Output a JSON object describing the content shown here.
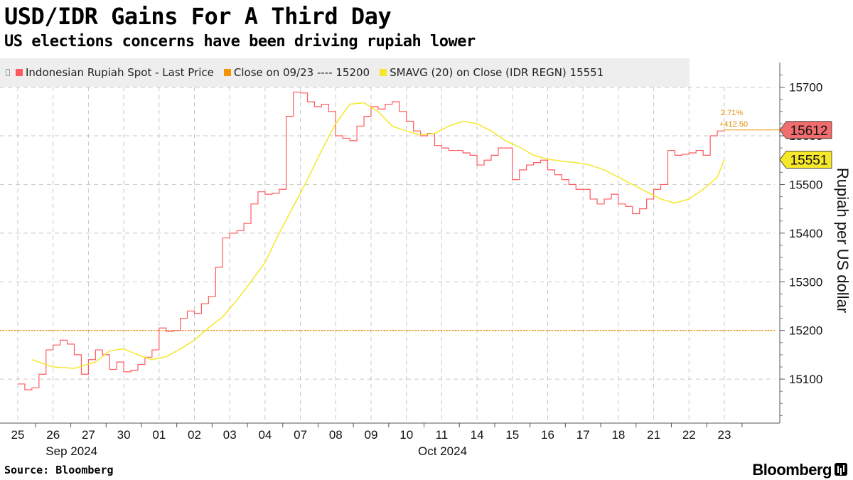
{
  "header": {
    "title": "USD/IDR Gains For A Third Day",
    "subtitle": "US elections concerns have been driving rupiah lower"
  },
  "legend": {
    "items": [
      {
        "label": "Indonesian Rupiah Spot - Last Price",
        "color": "#ff5a5f"
      },
      {
        "label": "Close on 09/23 ---- 15200",
        "color": "#f59200"
      },
      {
        "label": "SMAVG (20)  on Close (IDR REGN) 15551",
        "color": "#f5e72a"
      }
    ]
  },
  "footer": {
    "source": "Source: Bloomberg",
    "brand": "Bloomberg"
  },
  "chart_data": {
    "type": "line",
    "title": "USD/IDR Gains For A Third Day",
    "subtitle": "US elections concerns have been driving rupiah lower",
    "ylabel": "Rupiah per US dollar",
    "ylim": [
      15000,
      15750
    ],
    "yticks": [
      15100,
      15200,
      15300,
      15400,
      15500,
      15600,
      15700
    ],
    "y_axis_position": "right",
    "grid": true,
    "legend_position": "top",
    "x_tick_labels": [
      "25",
      "26",
      "27",
      "30",
      "01",
      "02",
      "03",
      "04",
      "07",
      "08",
      "09",
      "10",
      "11",
      "14",
      "15",
      "16",
      "17",
      "18",
      "21",
      "22",
      "23"
    ],
    "x_month_labels": [
      {
        "label": "Sep 2024",
        "at_index": 1
      },
      {
        "label": "Oct 2024",
        "at_index": 11.5
      }
    ],
    "reference_line": {
      "name": "Close on 09/23",
      "value": 15200,
      "color": "#f59200"
    },
    "annotation": {
      "pct": "2.71%",
      "change": "+412.50"
    },
    "last_value_labels": [
      {
        "value": "15612",
        "color": "#f26d6d",
        "y": 15612
      },
      {
        "value": "15551",
        "color": "#f5e72a",
        "y": 15551
      }
    ],
    "series": [
      {
        "name": "Indonesian Rupiah Spot - Last Price",
        "color": "#ff5a5f",
        "x": [
          0,
          0.2,
          0.4,
          0.6,
          0.8,
          1.0,
          1.2,
          1.4,
          1.6,
          1.8,
          2.0,
          2.2,
          2.4,
          2.6,
          2.8,
          3.0,
          3.2,
          3.4,
          3.6,
          3.8,
          4.0,
          4.2,
          4.4,
          4.6,
          4.8,
          5.0,
          5.2,
          5.4,
          5.6,
          5.8,
          6.0,
          6.2,
          6.4,
          6.6,
          6.8,
          7.0,
          7.2,
          7.4,
          7.6,
          7.8,
          8.0,
          8.2,
          8.4,
          8.6,
          8.8,
          9.0,
          9.2,
          9.4,
          9.6,
          9.8,
          10.0,
          10.2,
          10.4,
          10.6,
          10.8,
          11.0,
          11.2,
          11.4,
          11.6,
          11.8,
          12.0,
          12.2,
          12.4,
          12.6,
          12.8,
          13.0,
          13.2,
          13.4,
          13.6,
          13.8,
          14.0,
          14.2,
          14.4,
          14.6,
          14.8,
          15.0,
          15.2,
          15.4,
          15.6,
          15.8,
          16.0,
          16.2,
          16.4,
          16.6,
          16.8,
          17.0,
          17.2,
          17.4,
          17.6,
          17.8,
          18.0,
          18.2,
          18.4,
          18.6,
          18.8,
          19.0,
          19.2,
          19.4,
          19.6,
          19.8,
          20.0
        ],
        "values": [
          15090,
          15078,
          15082,
          15110,
          15160,
          15170,
          15180,
          15172,
          15150,
          15110,
          15140,
          15160,
          15150,
          15120,
          15135,
          15115,
          15118,
          15130,
          15145,
          15160,
          15205,
          15198,
          15200,
          15225,
          15240,
          15235,
          15255,
          15270,
          15330,
          15390,
          15400,
          15405,
          15420,
          15460,
          15485,
          15480,
          15482,
          15490,
          15640,
          15690,
          15688,
          15670,
          15660,
          15665,
          15650,
          15600,
          15595,
          15590,
          15620,
          15640,
          15660,
          15655,
          15665,
          15670,
          15650,
          15630,
          15610,
          15600,
          15605,
          15580,
          15575,
          15570,
          15570,
          15565,
          15560,
          15540,
          15550,
          15560,
          15575,
          15575,
          15510,
          15530,
          15540,
          15545,
          15550,
          15530,
          15520,
          15510,
          15500,
          15490,
          15490,
          15470,
          15460,
          15470,
          15480,
          15460,
          15455,
          15440,
          15450,
          15470,
          15490,
          15500,
          15570,
          15560,
          15562,
          15565,
          15570,
          15560,
          15600,
          15610,
          15612
        ]
      },
      {
        "name": "SMAVG (20)  on Close (IDR REGN)",
        "color": "#f5e72a",
        "x": [
          0.4,
          1.0,
          1.6,
          2.2,
          2.6,
          3.0,
          3.4,
          3.8,
          4.2,
          4.6,
          5.0,
          5.4,
          5.8,
          6.2,
          6.6,
          7.0,
          7.4,
          7.8,
          8.2,
          8.6,
          9.0,
          9.4,
          9.8,
          10.2,
          10.6,
          11.0,
          11.4,
          11.8,
          12.2,
          12.6,
          13.0,
          13.4,
          13.8,
          14.2,
          14.6,
          15.0,
          15.4,
          15.8,
          16.2,
          16.6,
          17.0,
          17.4,
          17.8,
          18.2,
          18.6,
          19.0,
          19.4,
          19.8,
          20.0
        ],
        "values": [
          15140,
          15125,
          15122,
          15135,
          15158,
          15162,
          15150,
          15140,
          15146,
          15162,
          15180,
          15205,
          15228,
          15262,
          15300,
          15340,
          15400,
          15455,
          15510,
          15570,
          15625,
          15665,
          15668,
          15650,
          15620,
          15610,
          15602,
          15605,
          15620,
          15630,
          15625,
          15610,
          15590,
          15577,
          15560,
          15552,
          15548,
          15545,
          15540,
          15530,
          15515,
          15500,
          15485,
          15470,
          15462,
          15470,
          15490,
          15515,
          15551
        ]
      }
    ]
  }
}
